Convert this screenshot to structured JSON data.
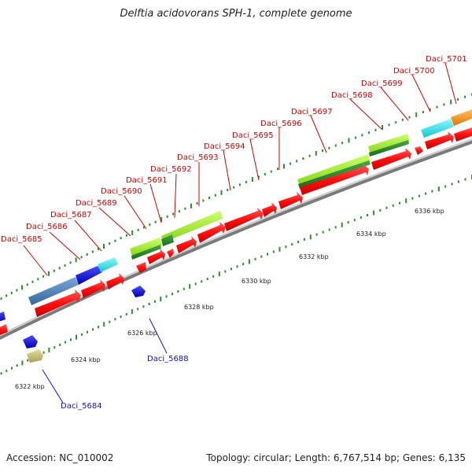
{
  "title": "Delftia acidovorans SPH-1, complete genome",
  "footer": {
    "accession": "Accession: NC_010002",
    "topology": "Topology: circular; Length: 6,767,514 bp; Genes: 6,135"
  },
  "scale_labels": [
    "6322 kbp",
    "6324 kbp",
    "6326 kbp",
    "6328 kbp",
    "6330 kbp",
    "6332 kbp",
    "6334 kbp",
    "6336 kbp"
  ],
  "gene_labels_forward": [
    "Daci_5685",
    "Daci_5686",
    "Daci_5687",
    "Daci_5689",
    "Daci_5690",
    "Daci_5691",
    "Daci_5692",
    "Daci_5693",
    "Daci_5694",
    "Daci_5695",
    "Daci_5696",
    "Daci_5697",
    "Daci_5698",
    "Daci_5699",
    "Daci_5700",
    "Daci_5701"
  ],
  "gene_labels_reverse": [
    "Daci_5684",
    "Daci_5688"
  ],
  "colors": {
    "backbone": "#9a9a9a",
    "cds": "#ff1a1a",
    "label_forward": "#d40000",
    "label_reverse": "#1010c8",
    "tick": "#2e8b2e",
    "blue_gene": "#1010e0",
    "steel_gene": "#4f86b8",
    "cyan_gene": "#1ae6ee",
    "lime_gene": "#a6ee3a",
    "dark_green_gene": "#2e8b2e",
    "orange_gene": "#ff9a1a",
    "khaki_gene": "#c8c078"
  }
}
